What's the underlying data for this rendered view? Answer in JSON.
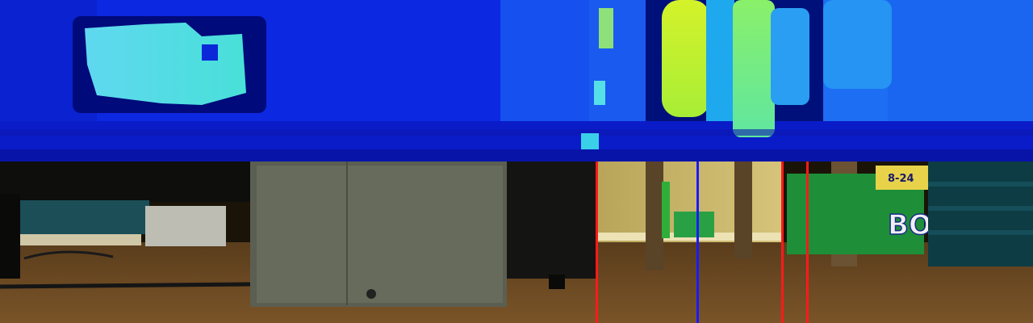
{
  "panels": [
    {
      "id": "depth-map",
      "kind": "false-color depth image"
    },
    {
      "id": "camera-view",
      "kind": "RGB camera image, floor-level view"
    }
  ],
  "palette": {
    "depth_far": "#0a1fd8",
    "depth_mid": "#1e7df0",
    "depth_near": "#3fe0e0",
    "depth_nearest": "#c8f02a",
    "depth_shadow": "#000a6e",
    "floor": "#6b4a22",
    "wall": "#c9b86a"
  },
  "markers": [
    {
      "color": "#ff1a1a",
      "label": "red-marker"
    },
    {
      "color": "#1a1aff",
      "label": "blue-marker"
    },
    {
      "color": "#ff1a1a",
      "label": "red-marker"
    },
    {
      "color": "#ff1a1a",
      "label": "red-marker"
    }
  ],
  "scene_text": {
    "package_label": "BOU",
    "package_small": "8-24"
  }
}
